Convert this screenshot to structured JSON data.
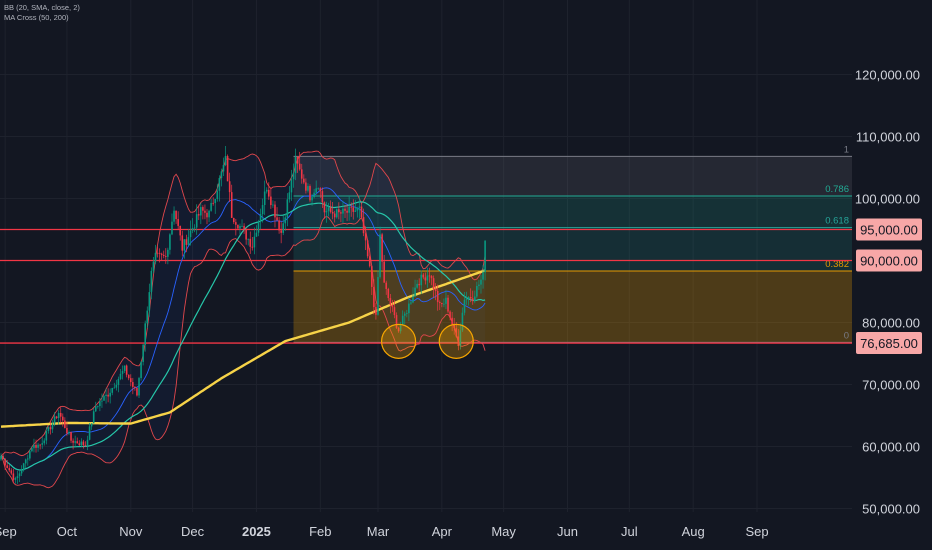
{
  "indicators": [
    "BB (20, SMA, close, 2)",
    "MA Cross (50, 200)"
  ],
  "chart_data": {
    "type": "candlestick",
    "x": [
      "Sep",
      "Oct",
      "Nov",
      "Dec",
      "2025",
      "Feb",
      "Mar",
      "Apr",
      "May",
      "Jun",
      "Jul",
      "Aug",
      "Sep"
    ],
    "y_ticks": [
      "120,000.00",
      "110,000.00",
      "100,000.00",
      "80,000.00",
      "70,000.00",
      "60,000.00",
      "50,000.00"
    ],
    "ylim": [
      45000,
      126000
    ],
    "price_levels": [
      {
        "label": "95,000.00",
        "value": 95000,
        "color": "#f23645"
      },
      {
        "label": "90,000.00",
        "value": 90000,
        "color": "#f23645"
      },
      {
        "label": "76,685.00",
        "value": 76685,
        "color": "#f23645"
      }
    ],
    "fibonacci": [
      {
        "label": "1",
        "value": 106800,
        "color": "#787b86"
      },
      {
        "label": "0.786",
        "value": 100400,
        "color": "#22ab94"
      },
      {
        "label": "0.618",
        "value": 95300,
        "color": "#26a69a"
      },
      {
        "label": "0.382",
        "value": 88300,
        "color": "#e69a00"
      },
      {
        "label": "0",
        "value": 76800,
        "color": "#787b86"
      }
    ],
    "double_bottom_circles": [
      {
        "date": "2025-03-11",
        "price": 76800
      },
      {
        "date": "2025-04-08",
        "price": 76800
      }
    ],
    "colors": {
      "up": "#089981",
      "down": "#f23645",
      "ma200": "#f7d348",
      "ma50": "#26c6a9",
      "bb": "#e0474c",
      "bb_basis": "#2962ff"
    }
  }
}
